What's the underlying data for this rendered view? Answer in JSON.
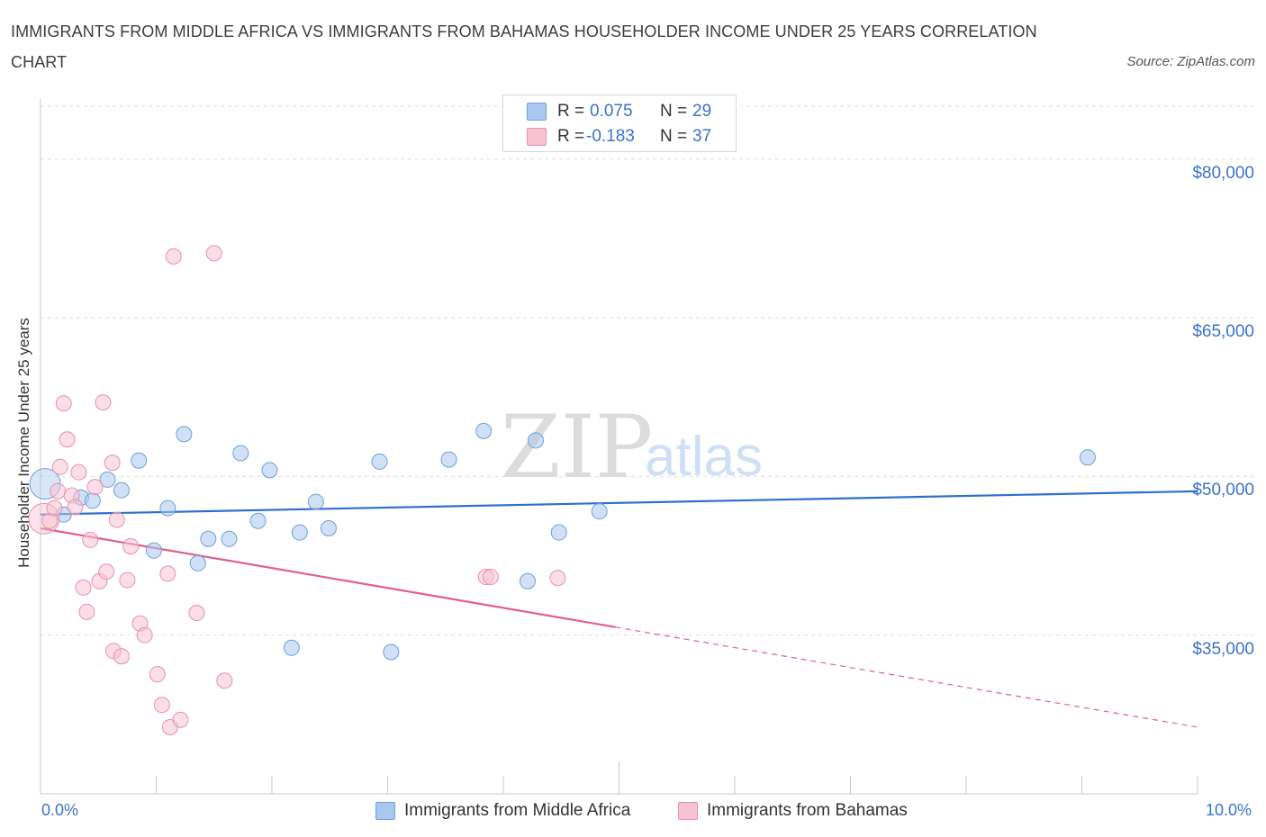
{
  "title": "IMMIGRANTS FROM MIDDLE AFRICA VS IMMIGRANTS FROM BAHAMAS HOUSEHOLDER INCOME UNDER 25 YEARS CORRELATION CHART",
  "source": "Source: ZipAtlas.com",
  "watermark": {
    "zip": "ZIP",
    "atlas": "atlas"
  },
  "legend": {
    "r_label": "R =",
    "n_label": "N =",
    "rows": [
      {
        "r": "0.075",
        "n": "29",
        "color": "#a9c8f0",
        "border": "#6f9fdc"
      },
      {
        "r": "-0.183",
        "n": "37",
        "color": "#f7c3d3",
        "border": "#e592ae"
      }
    ]
  },
  "chart_data": {
    "type": "scatter",
    "title": "IMMIGRANTS FROM MIDDLE AFRICA VS IMMIGRANTS FROM BAHAMAS HOUSEHOLDER INCOME UNDER 25 YEARS CORRELATION CHART",
    "xlabel": "",
    "ylabel": "Householder Income Under 25 years",
    "xlim": [
      0,
      10
    ],
    "ylim": [
      20000,
      85000
    ],
    "x_tick_labels": [
      "0.0%",
      "10.0%"
    ],
    "y_ticks": [
      35000,
      50000,
      65000,
      80000
    ],
    "y_tick_labels": [
      "$35,000",
      "$50,000",
      "$65,000",
      "$80,000"
    ],
    "series": [
      {
        "name": "Immigrants from Middle Africa",
        "color": "#a9c8f0",
        "border": "#6f9fdc",
        "line_color": "#2f6fcc",
        "trend": {
          "x0": 0,
          "y0": 46400,
          "x1": 10,
          "y1": 48600,
          "solid_until": 10
        },
        "points": [
          {
            "x": 0.04,
            "y": 49300,
            "big": true
          },
          {
            "x": 0.2,
            "y": 46400
          },
          {
            "x": 0.35,
            "y": 48000
          },
          {
            "x": 0.45,
            "y": 47700
          },
          {
            "x": 0.58,
            "y": 49700
          },
          {
            "x": 0.7,
            "y": 48700
          },
          {
            "x": 0.85,
            "y": 51500
          },
          {
            "x": 0.98,
            "y": 43000
          },
          {
            "x": 1.1,
            "y": 47000
          },
          {
            "x": 1.24,
            "y": 54000
          },
          {
            "x": 1.36,
            "y": 41800
          },
          {
            "x": 1.45,
            "y": 44100
          },
          {
            "x": 1.63,
            "y": 44100
          },
          {
            "x": 1.73,
            "y": 52200
          },
          {
            "x": 1.88,
            "y": 45800
          },
          {
            "x": 1.98,
            "y": 50600
          },
          {
            "x": 2.17,
            "y": 33800
          },
          {
            "x": 2.24,
            "y": 44700
          },
          {
            "x": 2.38,
            "y": 47600
          },
          {
            "x": 2.49,
            "y": 45100
          },
          {
            "x": 2.93,
            "y": 51400
          },
          {
            "x": 3.03,
            "y": 33400
          },
          {
            "x": 3.53,
            "y": 51600
          },
          {
            "x": 3.83,
            "y": 54300
          },
          {
            "x": 4.21,
            "y": 40100
          },
          {
            "x": 4.28,
            "y": 53400
          },
          {
            "x": 4.48,
            "y": 44700
          },
          {
            "x": 4.83,
            "y": 46700
          },
          {
            "x": 9.05,
            "y": 51800
          }
        ]
      },
      {
        "name": "Immigrants from Bahamas",
        "color": "#f7c3d3",
        "border": "#e592ae",
        "line_color": "#e0608c",
        "trend": {
          "x0": 0,
          "y0": 45100,
          "x1": 10,
          "y1": 26300,
          "solid_until": 4.97
        },
        "points": [
          {
            "x": 0.03,
            "y": 46000,
            "big": true
          },
          {
            "x": 0.08,
            "y": 45800
          },
          {
            "x": 0.12,
            "y": 47000
          },
          {
            "x": 0.15,
            "y": 48600
          },
          {
            "x": 0.17,
            "y": 50900
          },
          {
            "x": 0.2,
            "y": 56900
          },
          {
            "x": 0.23,
            "y": 53500
          },
          {
            "x": 0.27,
            "y": 48200
          },
          {
            "x": 0.3,
            "y": 47100
          },
          {
            "x": 0.33,
            "y": 50400
          },
          {
            "x": 0.37,
            "y": 39500
          },
          {
            "x": 0.4,
            "y": 37200
          },
          {
            "x": 0.43,
            "y": 44000
          },
          {
            "x": 0.47,
            "y": 49000
          },
          {
            "x": 0.51,
            "y": 40100
          },
          {
            "x": 0.54,
            "y": 57000
          },
          {
            "x": 0.57,
            "y": 41000
          },
          {
            "x": 0.62,
            "y": 51300
          },
          {
            "x": 0.63,
            "y": 33500
          },
          {
            "x": 0.66,
            "y": 45900
          },
          {
            "x": 0.7,
            "y": 33000
          },
          {
            "x": 0.75,
            "y": 40200
          },
          {
            "x": 0.78,
            "y": 43400
          },
          {
            "x": 0.86,
            "y": 36100
          },
          {
            "x": 0.9,
            "y": 35000
          },
          {
            "x": 1.01,
            "y": 31300
          },
          {
            "x": 1.05,
            "y": 28400
          },
          {
            "x": 1.1,
            "y": 40800
          },
          {
            "x": 1.12,
            "y": 26300
          },
          {
            "x": 1.15,
            "y": 70800
          },
          {
            "x": 1.21,
            "y": 27000
          },
          {
            "x": 1.35,
            "y": 37100
          },
          {
            "x": 1.5,
            "y": 71100
          },
          {
            "x": 1.59,
            "y": 30700
          },
          {
            "x": 3.85,
            "y": 40500
          },
          {
            "x": 3.89,
            "y": 40500
          },
          {
            "x": 4.47,
            "y": 40400
          }
        ]
      }
    ]
  }
}
